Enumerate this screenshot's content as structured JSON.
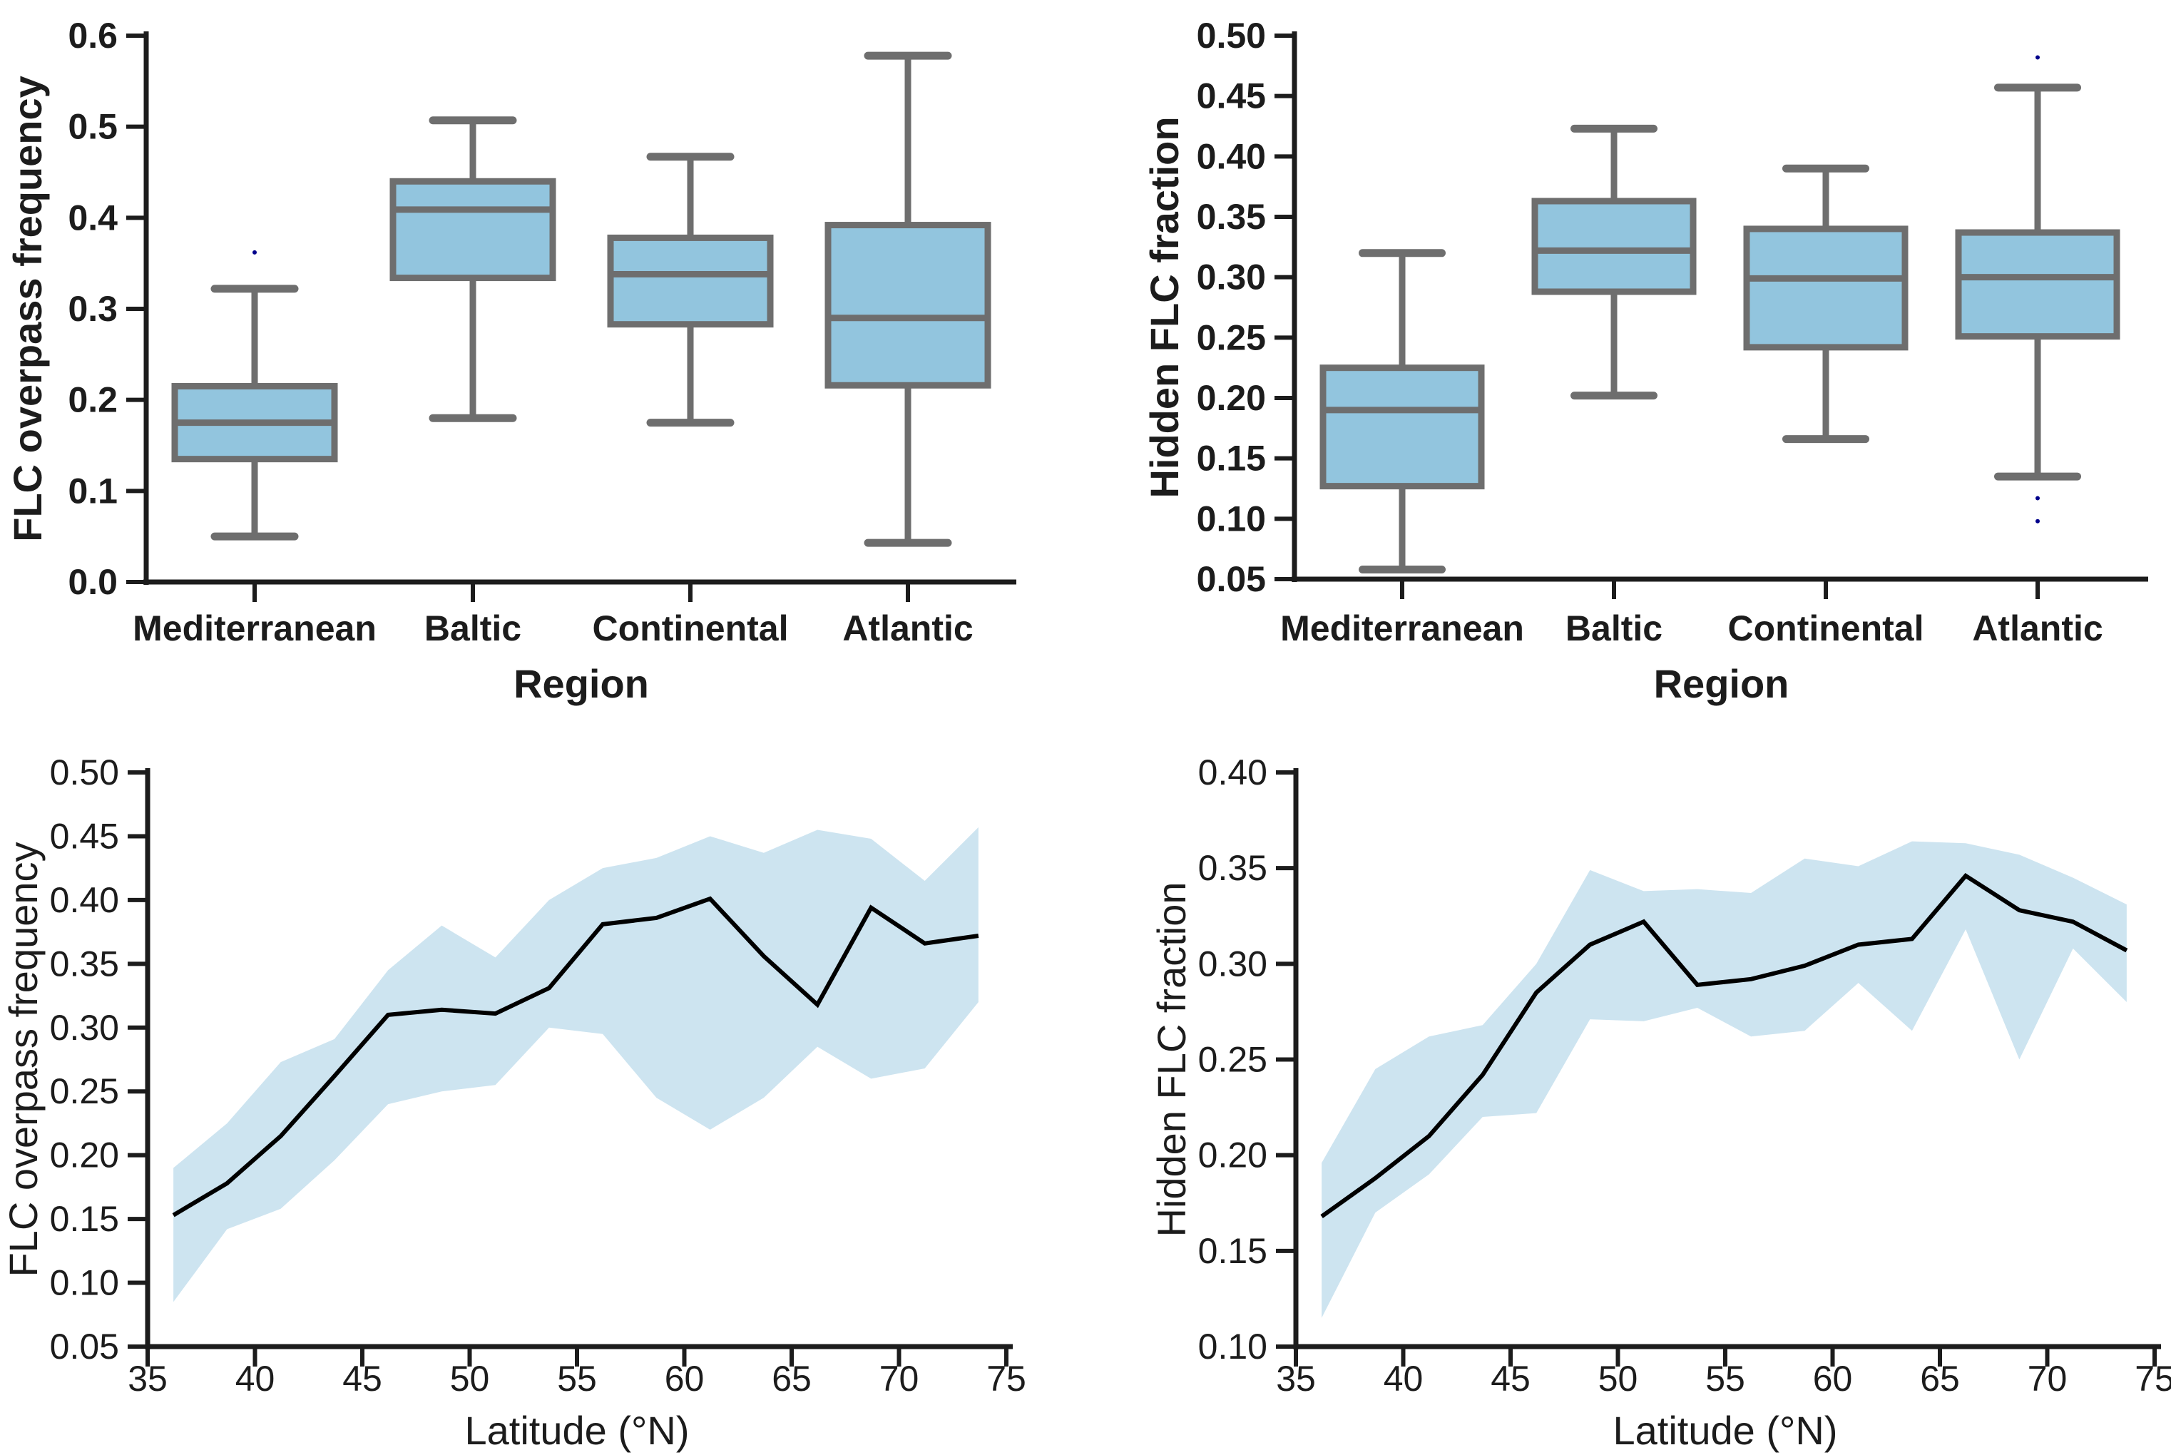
{
  "figure_title": "",
  "colors": {
    "background": "#ffffff",
    "box_fill": "#92c5de",
    "box_edge": "#6e6e6e",
    "band_fill": "#cde4f0",
    "line": "#000000",
    "axis": "#1c1c1c",
    "flier": "#00008b"
  },
  "chart_data": [
    {
      "id": "box-flc-overpass",
      "type": "box",
      "xlabel": "Region",
      "ylabel": "FLC overpass frequency",
      "ylim": [
        0.0,
        0.6
      ],
      "yticks": {
        "values": [
          0.0,
          0.1,
          0.2,
          0.3,
          0.4,
          0.5,
          0.6
        ],
        "labels": [
          "0.0",
          "0.1",
          "0.2",
          "0.3",
          "0.4",
          "0.5",
          "0.6"
        ]
      },
      "categories": [
        "Mediterranean",
        "Baltic",
        "Continental",
        "Atlantic"
      ],
      "boxes": [
        {
          "label": "Mediterranean",
          "whislo": 0.05,
          "q1": 0.135,
          "med": 0.175,
          "q3": 0.215,
          "whishi": 0.322,
          "fliers": [
            0.362
          ]
        },
        {
          "label": "Baltic",
          "whislo": 0.18,
          "q1": 0.334,
          "med": 0.409,
          "q3": 0.44,
          "whishi": 0.507,
          "fliers": []
        },
        {
          "label": "Continental",
          "whislo": 0.175,
          "q1": 0.283,
          "med": 0.338,
          "q3": 0.378,
          "whishi": 0.467,
          "fliers": []
        },
        {
          "label": "Atlantic",
          "whislo": 0.043,
          "q1": 0.216,
          "med": 0.29,
          "q3": 0.392,
          "whishi": 0.578,
          "fliers": []
        }
      ],
      "legend": null,
      "grid": false
    },
    {
      "id": "box-hidden-flc",
      "type": "box",
      "xlabel": "Region",
      "ylabel": "Hidden FLC fraction",
      "ylim": [
        0.05,
        0.5
      ],
      "yticks": {
        "values": [
          0.05,
          0.1,
          0.15,
          0.2,
          0.25,
          0.3,
          0.35,
          0.4,
          0.45,
          0.5
        ],
        "labels": [
          "0.05",
          "0.10",
          "0.15",
          "0.20",
          "0.25",
          "0.30",
          "0.35",
          "0.40",
          "0.45",
          "0.50"
        ]
      },
      "categories": [
        "Mediterranean",
        "Baltic",
        "Continental",
        "Atlantic"
      ],
      "boxes": [
        {
          "label": "Mediterranean",
          "whislo": 0.058,
          "q1": 0.127,
          "med": 0.19,
          "q3": 0.225,
          "whishi": 0.32,
          "fliers": []
        },
        {
          "label": "Baltic",
          "whislo": 0.202,
          "q1": 0.288,
          "med": 0.322,
          "q3": 0.363,
          "whishi": 0.423,
          "fliers": []
        },
        {
          "label": "Continental",
          "whislo": 0.166,
          "q1": 0.242,
          "med": 0.299,
          "q3": 0.34,
          "whishi": 0.39,
          "fliers": []
        },
        {
          "label": "Atlantic",
          "whislo": 0.135,
          "q1": 0.251,
          "med": 0.3,
          "q3": 0.337,
          "whishi": 0.457,
          "fliers": [
            0.482,
            0.117,
            0.098
          ]
        }
      ],
      "legend": null,
      "grid": false
    },
    {
      "id": "band-flc-overpass",
      "type": "area",
      "xlabel": "Latitude (°N)",
      "ylabel": "FLC overpass frequency",
      "xlim": [
        35,
        75
      ],
      "ylim": [
        0.05,
        0.5
      ],
      "xticks": {
        "values": [
          35,
          40,
          45,
          50,
          55,
          60,
          65,
          70,
          75
        ],
        "labels": [
          "35",
          "40",
          "45",
          "50",
          "55",
          "60",
          "65",
          "70",
          "75"
        ]
      },
      "yticks": {
        "values": [
          0.05,
          0.1,
          0.15,
          0.2,
          0.25,
          0.3,
          0.35,
          0.4,
          0.45,
          0.5
        ],
        "labels": [
          "0.05",
          "0.10",
          "0.15",
          "0.20",
          "0.25",
          "0.30",
          "0.35",
          "0.40",
          "0.45",
          "0.50"
        ]
      },
      "x": [
        36.2,
        38.7,
        41.2,
        43.7,
        46.2,
        48.7,
        51.2,
        53.7,
        56.2,
        58.7,
        61.2,
        63.7,
        66.2,
        68.7,
        71.2,
        73.7
      ],
      "line": [
        0.153,
        0.178,
        0.215,
        0.262,
        0.31,
        0.314,
        0.311,
        0.331,
        0.381,
        0.386,
        0.401,
        0.356,
        0.318,
        0.394,
        0.366,
        0.372
      ],
      "band_lower": [
        0.085,
        0.142,
        0.158,
        0.196,
        0.24,
        0.25,
        0.255,
        0.3,
        0.295,
        0.245,
        0.22,
        0.245,
        0.285,
        0.26,
        0.268,
        0.32
      ],
      "band_upper": [
        0.19,
        0.225,
        0.273,
        0.291,
        0.345,
        0.38,
        0.355,
        0.4,
        0.425,
        0.433,
        0.45,
        0.437,
        0.455,
        0.448,
        0.415,
        0.457
      ],
      "legend": null,
      "grid": false
    },
    {
      "id": "band-hidden-flc",
      "type": "area",
      "xlabel": "Latitude (°N)",
      "ylabel": "Hidden FLC fraction",
      "xlim": [
        35,
        75
      ],
      "ylim": [
        0.1,
        0.4
      ],
      "xticks": {
        "values": [
          35,
          40,
          45,
          50,
          55,
          60,
          65,
          70,
          75
        ],
        "labels": [
          "35",
          "40",
          "45",
          "50",
          "55",
          "60",
          "65",
          "70",
          "75"
        ]
      },
      "yticks": {
        "values": [
          0.1,
          0.15,
          0.2,
          0.25,
          0.3,
          0.35,
          0.4
        ],
        "labels": [
          "0.10",
          "0.15",
          "0.20",
          "0.25",
          "0.30",
          "0.35",
          "0.40"
        ]
      },
      "x": [
        36.2,
        38.7,
        41.2,
        43.7,
        46.2,
        48.7,
        51.2,
        53.7,
        56.2,
        58.7,
        61.2,
        63.7,
        66.2,
        68.7,
        71.2,
        73.7
      ],
      "line": [
        0.168,
        0.188,
        0.21,
        0.242,
        0.285,
        0.31,
        0.322,
        0.289,
        0.292,
        0.299,
        0.31,
        0.313,
        0.346,
        0.328,
        0.322,
        0.307
      ],
      "band_lower": [
        0.115,
        0.17,
        0.19,
        0.22,
        0.222,
        0.271,
        0.27,
        0.277,
        0.262,
        0.265,
        0.29,
        0.265,
        0.318,
        0.25,
        0.308,
        0.28
      ],
      "band_upper": [
        0.196,
        0.245,
        0.262,
        0.268,
        0.3,
        0.349,
        0.338,
        0.339,
        0.337,
        0.355,
        0.351,
        0.364,
        0.363,
        0.357,
        0.345,
        0.331
      ],
      "legend": null,
      "grid": false
    }
  ]
}
